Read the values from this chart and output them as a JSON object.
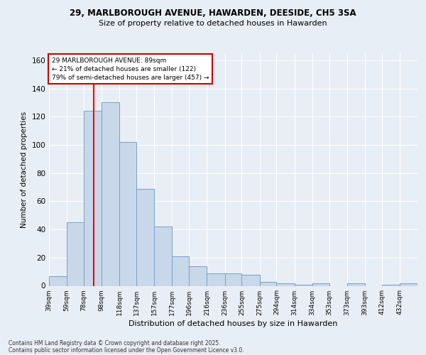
{
  "title_line1": "29, MARLBOROUGH AVENUE, HAWARDEN, DEESIDE, CH5 3SA",
  "title_line2": "Size of property relative to detached houses in Hawarden",
  "xlabel": "Distribution of detached houses by size in Hawarden",
  "ylabel": "Number of detached properties",
  "categories": [
    "39sqm",
    "59sqm",
    "78sqm",
    "98sqm",
    "118sqm",
    "137sqm",
    "157sqm",
    "177sqm",
    "196sqm",
    "216sqm",
    "236sqm",
    "255sqm",
    "275sqm",
    "294sqm",
    "314sqm",
    "334sqm",
    "353sqm",
    "373sqm",
    "393sqm",
    "412sqm",
    "432sqm"
  ],
  "values": [
    7,
    45,
    124,
    130,
    102,
    69,
    42,
    21,
    14,
    9,
    9,
    8,
    3,
    2,
    1,
    2,
    0,
    2,
    0,
    1,
    2
  ],
  "bar_color": "#c8d8ea",
  "bar_edge_color": "#7aa0c4",
  "red_line_x": 89,
  "bin_edges": [
    39,
    59,
    78,
    98,
    118,
    137,
    157,
    177,
    196,
    216,
    236,
    255,
    275,
    294,
    314,
    334,
    353,
    373,
    393,
    412,
    432,
    452
  ],
  "annotation_text": "29 MARLBOROUGH AVENUE: 89sqm\n← 21% of detached houses are smaller (122)\n79% of semi-detached houses are larger (457) →",
  "annotation_box_color": "#ffffff",
  "annotation_box_edge": "#cc0000",
  "ylim": [
    0,
    165
  ],
  "yticks": [
    0,
    20,
    40,
    60,
    80,
    100,
    120,
    140,
    160
  ],
  "footer_line1": "Contains HM Land Registry data © Crown copyright and database right 2025.",
  "footer_line2": "Contains public sector information licensed under the Open Government Licence v3.0.",
  "bg_color": "#e8eef5",
  "plot_bg_color": "#e8eef5"
}
